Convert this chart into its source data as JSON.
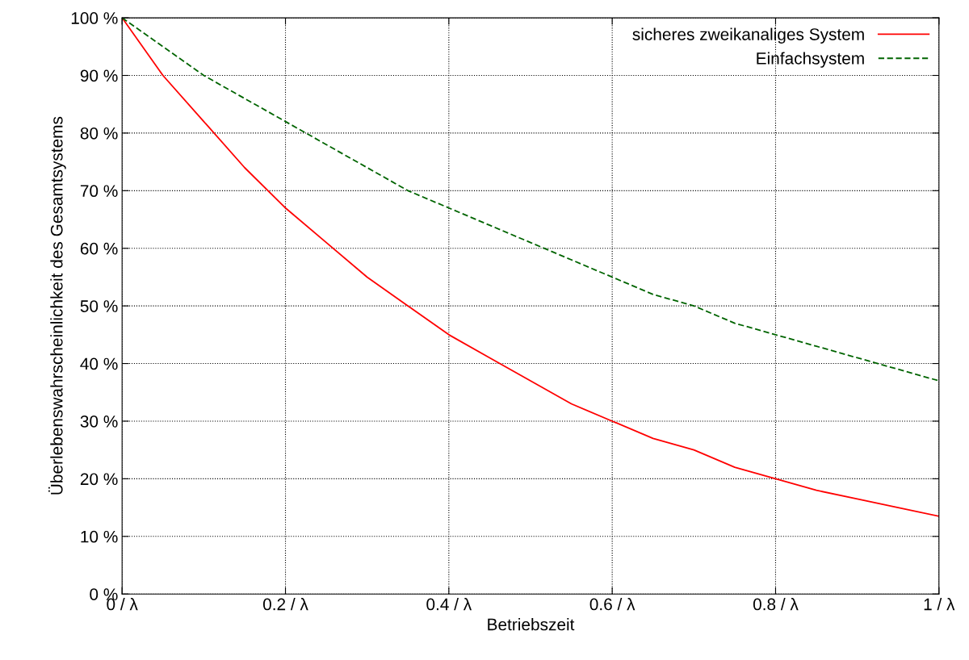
{
  "chart_data": {
    "type": "line",
    "xlabel": "Betriebszeit",
    "ylabel": "Überlebenswahrscheinlichkeit des Gesamtsystems",
    "x": [
      0,
      0.05,
      0.1,
      0.15,
      0.2,
      0.25,
      0.3,
      0.35,
      0.4,
      0.45,
      0.5,
      0.55,
      0.6,
      0.65,
      0.7,
      0.75,
      0.8,
      0.85,
      0.9,
      0.95,
      1
    ],
    "series": [
      {
        "name": "sicheres zweikanaliges System",
        "color": "#ff0000",
        "line_style": "solid",
        "values": [
          100,
          90,
          82,
          74,
          67,
          61,
          55,
          50,
          45,
          41,
          37,
          33,
          30,
          27,
          25,
          22,
          20,
          18,
          16.5,
          15,
          13.5
        ]
      },
      {
        "name": "Einfachsystem",
        "color": "#006400",
        "line_style": "dashed",
        "values": [
          100,
          95,
          90,
          86,
          82,
          78,
          74,
          70,
          67,
          64,
          61,
          58,
          55,
          52,
          50,
          47,
          45,
          43,
          41,
          39,
          37
        ]
      }
    ],
    "xlim": [
      0,
      1
    ],
    "ylim": [
      0,
      100
    ],
    "xticks": [
      {
        "value": 0,
        "label": "0 / λ"
      },
      {
        "value": 0.2,
        "label": "0.2 / λ"
      },
      {
        "value": 0.4,
        "label": "0.4 / λ"
      },
      {
        "value": 0.6,
        "label": "0.6 / λ"
      },
      {
        "value": 0.8,
        "label": "0.8 / λ"
      },
      {
        "value": 1,
        "label": "1 / λ"
      }
    ],
    "yticks": [
      {
        "value": 0,
        "label": "0 %"
      },
      {
        "value": 10,
        "label": "10 %"
      },
      {
        "value": 20,
        "label": "20 %"
      },
      {
        "value": 30,
        "label": "30 %"
      },
      {
        "value": 40,
        "label": "40 %"
      },
      {
        "value": 50,
        "label": "50 %"
      },
      {
        "value": 60,
        "label": "60 %"
      },
      {
        "value": 70,
        "label": "70 %"
      },
      {
        "value": 80,
        "label": "80 %"
      },
      {
        "value": 90,
        "label": "90 %"
      },
      {
        "value": 100,
        "label": "100 %"
      }
    ],
    "grid": true,
    "legend": "top right",
    "marker": "none"
  }
}
